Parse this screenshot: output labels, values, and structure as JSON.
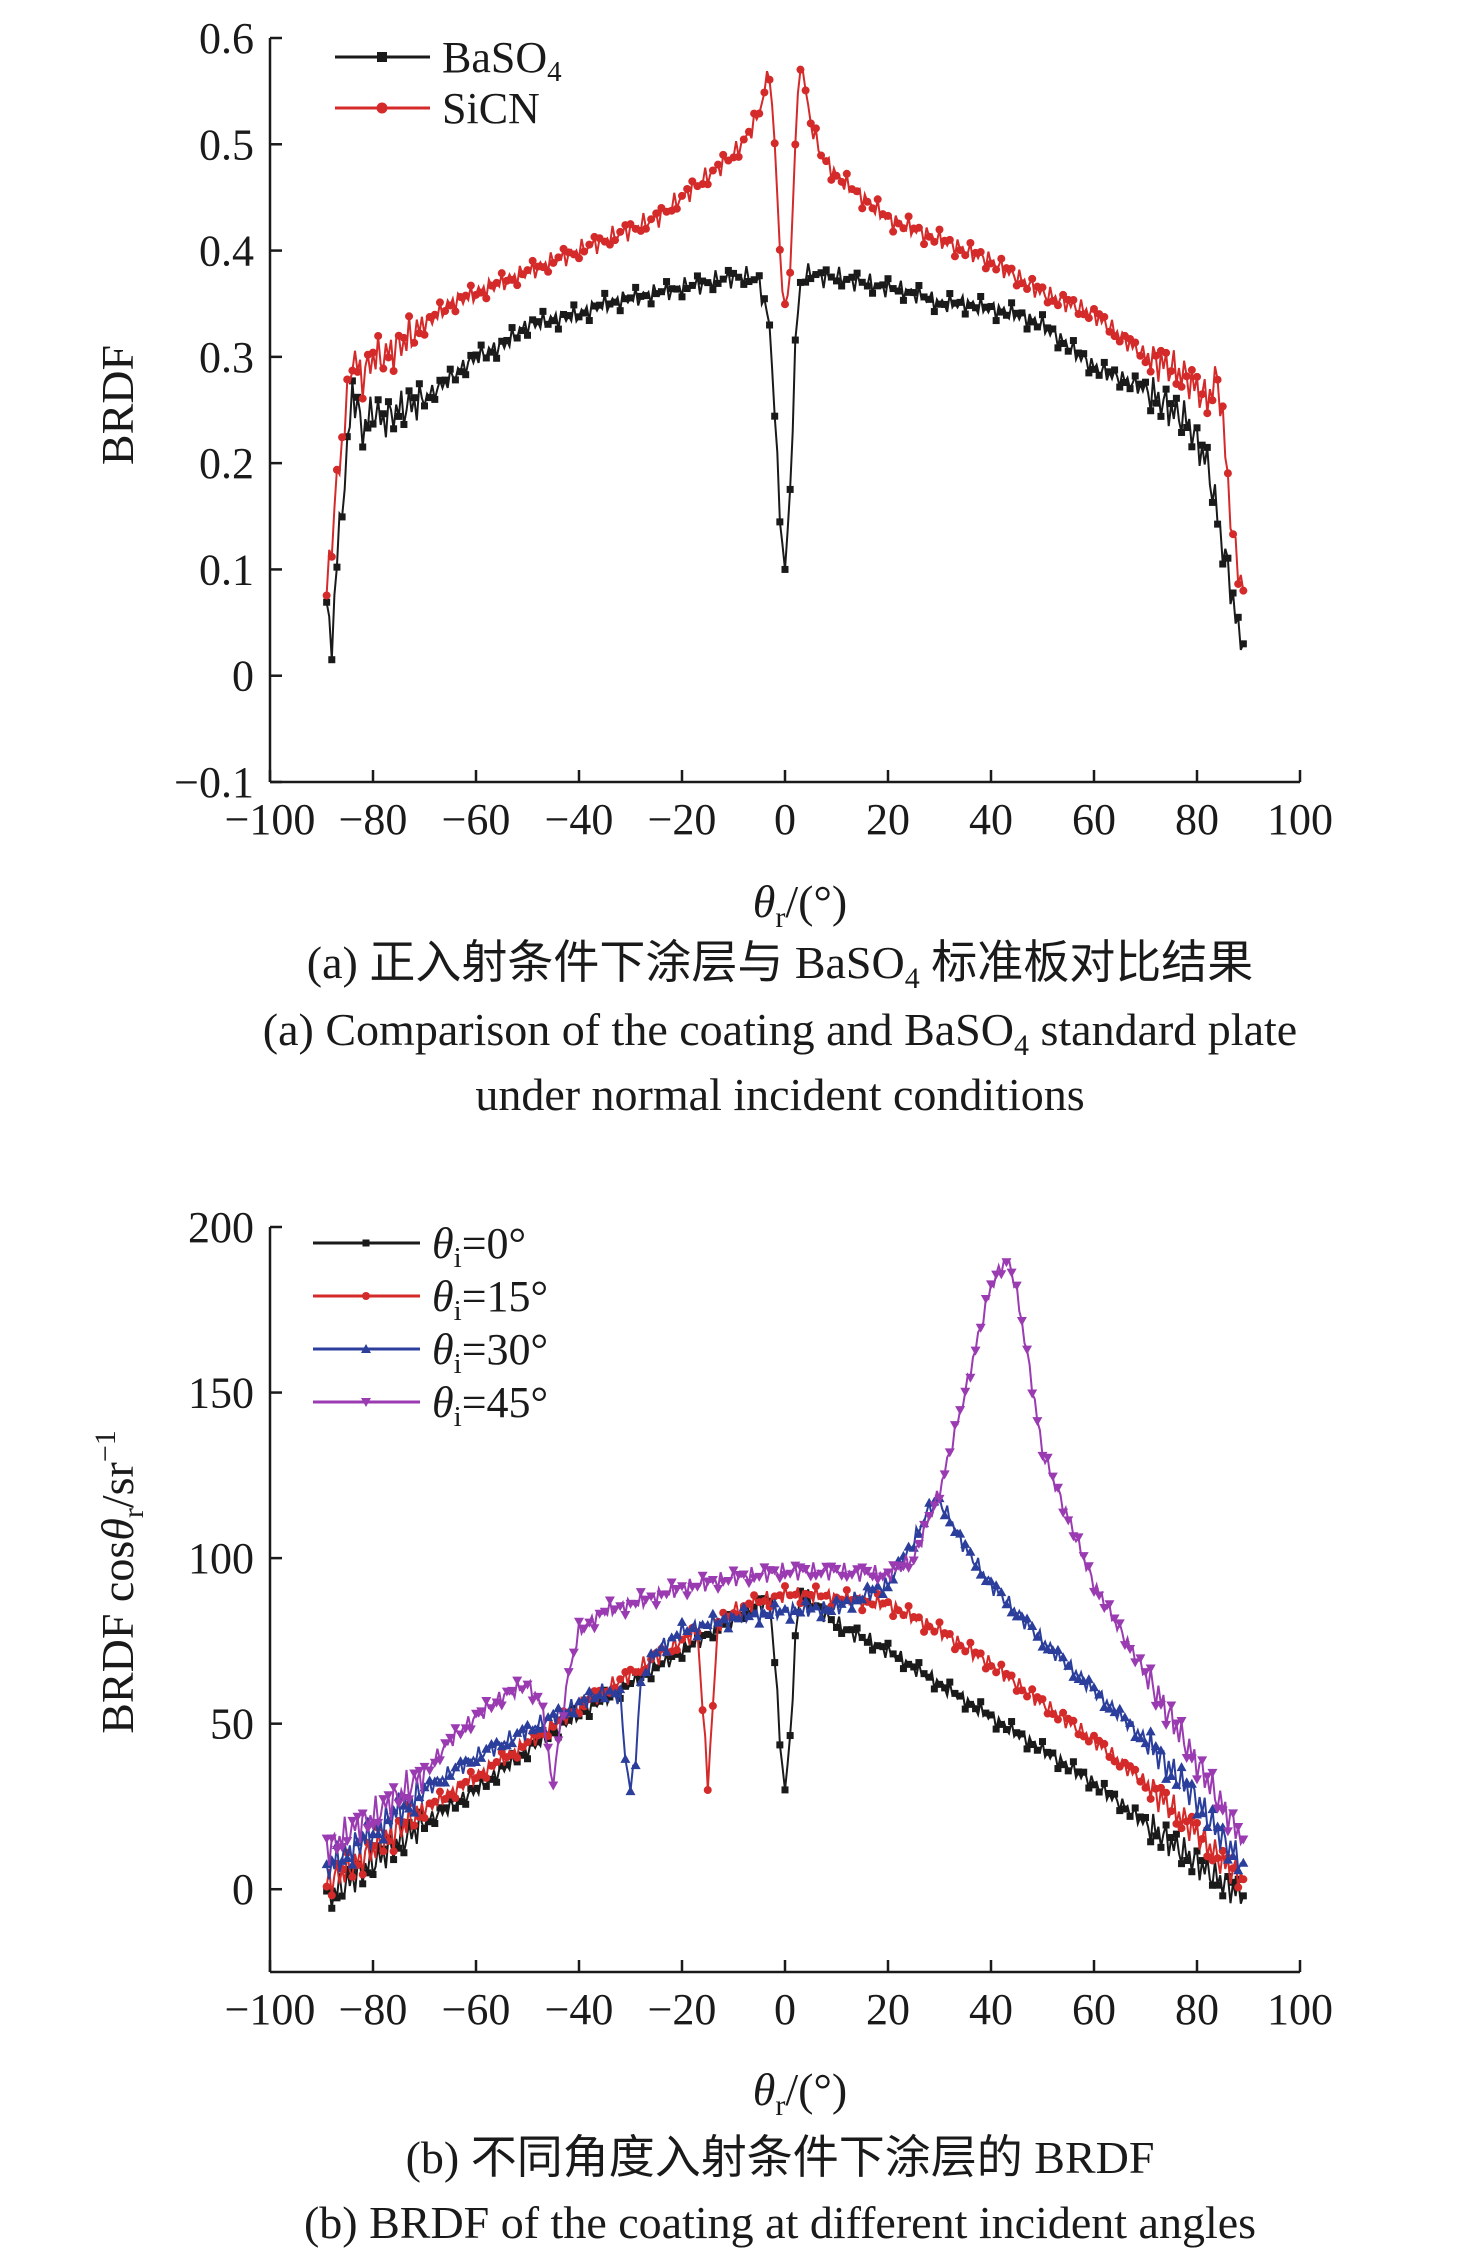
{
  "panel_a": {
    "caption_zh_prefix": "(a) 正入射条件下涂层与 ",
    "caption_zh_suffix": " 标准板对比结果",
    "caption_en_line1_prefix": "(a) Comparison of the coating and ",
    "caption_en_line1_suffix": " standard plate",
    "caption_en_line2": "under normal incident conditions",
    "formula_base": "BaSO",
    "formula_sub": "4"
  },
  "panel_b": {
    "caption_zh": "(b) 不同角度入射条件下涂层的 BRDF",
    "caption_en": "(b) BRDF of the coating at different incident angles"
  },
  "chart_data": [
    {
      "type": "line",
      "ylabel": "BRDF",
      "xlabel_symbol": "θ",
      "xlabel_sub": "r",
      "xlabel_unit": "/(°)",
      "xlim": [
        -100,
        100
      ],
      "ylim": [
        -0.1,
        0.6
      ],
      "xticks": [
        -100,
        -80,
        -60,
        -40,
        -20,
        0,
        20,
        40,
        60,
        80,
        100
      ],
      "yticks": [
        -0.1,
        0,
        0.1,
        0.2,
        0.3,
        0.4,
        0.5,
        0.6
      ],
      "xtick_labels": [
        "−100",
        "−80",
        "−60",
        "−40",
        "−20",
        "0",
        "20",
        "40",
        "60",
        "80",
        "100"
      ],
      "ytick_labels": [
        "−0.1",
        "0",
        "0.1",
        "0.2",
        "0.3",
        "0.4",
        "0.5",
        "0.6"
      ],
      "grid": false,
      "legend_position": "top-left",
      "series": [
        {
          "name": "BaSO4",
          "legend_base": "BaSO",
          "legend_sub": "4",
          "color": "#1a1a1a",
          "marker": "square",
          "x": [
            -89,
            -88,
            -87,
            -86,
            -85,
            -84,
            -82,
            -80,
            -78,
            -75,
            -70,
            -65,
            -60,
            -55,
            -50,
            -45,
            -40,
            -35,
            -30,
            -25,
            -20,
            -15,
            -10,
            -7,
            -5,
            -3,
            -2,
            -1,
            0,
            1,
            2,
            3,
            5,
            7,
            10,
            15,
            20,
            25,
            30,
            35,
            40,
            45,
            50,
            55,
            60,
            65,
            70,
            75,
            78,
            80,
            82,
            84,
            85,
            86,
            87,
            88,
            89
          ],
          "y": [
            0.06,
            0.03,
            0.11,
            0.16,
            0.21,
            0.27,
            0.23,
            0.25,
            0.24,
            0.25,
            0.26,
            0.28,
            0.3,
            0.31,
            0.33,
            0.335,
            0.34,
            0.35,
            0.355,
            0.36,
            0.365,
            0.37,
            0.375,
            0.375,
            0.37,
            0.33,
            0.25,
            0.15,
            0.1,
            0.17,
            0.31,
            0.37,
            0.38,
            0.375,
            0.375,
            0.37,
            0.365,
            0.36,
            0.35,
            0.35,
            0.345,
            0.34,
            0.33,
            0.31,
            0.29,
            0.28,
            0.27,
            0.25,
            0.24,
            0.22,
            0.2,
            0.15,
            0.12,
            0.1,
            0.07,
            0.04,
            0.03
          ]
        },
        {
          "name": "SiCN",
          "legend_base": "SiCN",
          "legend_sub": "",
          "color": "#d42a2a",
          "marker": "circle",
          "x": [
            -89,
            -88,
            -87,
            -86,
            -85,
            -84,
            -82,
            -80,
            -78,
            -75,
            -70,
            -65,
            -60,
            -55,
            -50,
            -45,
            -40,
            -35,
            -30,
            -25,
            -20,
            -15,
            -10,
            -7,
            -5,
            -4,
            -3,
            -2,
            -1,
            0,
            1,
            2,
            3,
            4,
            5,
            7,
            10,
            15,
            20,
            25,
            30,
            35,
            40,
            45,
            50,
            55,
            60,
            65,
            70,
            75,
            78,
            80,
            82,
            84,
            85,
            86,
            87,
            88,
            89
          ],
          "y": [
            0.08,
            0.13,
            0.18,
            0.22,
            0.26,
            0.3,
            0.28,
            0.3,
            0.3,
            0.31,
            0.33,
            0.35,
            0.36,
            0.37,
            0.38,
            0.39,
            0.4,
            0.41,
            0.42,
            0.43,
            0.45,
            0.47,
            0.49,
            0.51,
            0.53,
            0.55,
            0.57,
            0.5,
            0.4,
            0.34,
            0.38,
            0.5,
            0.58,
            0.55,
            0.52,
            0.49,
            0.47,
            0.45,
            0.43,
            0.42,
            0.41,
            0.4,
            0.39,
            0.375,
            0.36,
            0.35,
            0.34,
            0.32,
            0.3,
            0.29,
            0.28,
            0.27,
            0.26,
            0.28,
            0.24,
            0.18,
            0.13,
            0.1,
            0.08
          ]
        }
      ]
    },
    {
      "type": "line",
      "ylabel_prefix": "BRDF cos",
      "ylabel_symbol": "θ",
      "ylabel_sub": "r",
      "ylabel_unit": "/sr",
      "ylabel_sup": "−1",
      "xlabel_symbol": "θ",
      "xlabel_sub": "r",
      "xlabel_unit": "/(°)",
      "xlim": [
        -100,
        100
      ],
      "ylim": [
        -25,
        200
      ],
      "xticks": [
        -100,
        -80,
        -60,
        -40,
        -20,
        0,
        20,
        40,
        60,
        80,
        100
      ],
      "yticks": [
        0,
        50,
        100,
        150,
        200
      ],
      "xtick_labels": [
        "−100",
        "−80",
        "−60",
        "−40",
        "−20",
        "0",
        "20",
        "40",
        "60",
        "80",
        "100"
      ],
      "ytick_labels": [
        "0",
        "50",
        "100",
        "150",
        "200"
      ],
      "grid": false,
      "legend_position": "top-left",
      "series": [
        {
          "name": "θi=0°",
          "legend_symbol": "θ",
          "legend_sub": "i",
          "legend_value": "=0°",
          "color": "#1a1a1a",
          "marker": "square",
          "x": [
            -89,
            -85,
            -80,
            -70,
            -60,
            -50,
            -40,
            -30,
            -20,
            -10,
            -5,
            -3,
            -2,
            -1,
            0,
            1,
            2,
            3,
            5,
            10,
            20,
            30,
            40,
            50,
            60,
            70,
            80,
            85,
            89
          ],
          "y": [
            -3,
            2,
            8,
            20,
            30,
            42,
            53,
            62,
            72,
            82,
            86,
            87,
            70,
            45,
            30,
            45,
            75,
            90,
            87,
            80,
            72,
            62,
            52,
            42,
            32,
            20,
            8,
            2,
            -2
          ]
        },
        {
          "name": "θi=15°",
          "legend_symbol": "θ",
          "legend_sub": "i",
          "legend_value": "=15°",
          "color": "#d42a2a",
          "marker": "circle",
          "x": [
            -89,
            -85,
            -80,
            -70,
            -60,
            -50,
            -40,
            -30,
            -20,
            -17,
            -16,
            -15,
            -14,
            -13,
            -10,
            -5,
            0,
            5,
            10,
            15,
            20,
            25,
            30,
            40,
            50,
            60,
            70,
            80,
            85,
            89
          ],
          "y": [
            2,
            6,
            12,
            24,
            34,
            44,
            55,
            65,
            75,
            78,
            55,
            32,
            55,
            80,
            84,
            87,
            89,
            89,
            88,
            87,
            86,
            82,
            78,
            68,
            56,
            45,
            32,
            17,
            8,
            3
          ]
        },
        {
          "name": "θi=30°",
          "legend_symbol": "θ",
          "legend_sub": "i",
          "legend_value": "=30°",
          "color": "#2b3e9c",
          "marker": "triangle-up",
          "x": [
            -89,
            -85,
            -80,
            -70,
            -60,
            -50,
            -40,
            -35,
            -32,
            -31,
            -30,
            -29,
            -28,
            -25,
            -20,
            -10,
            0,
            10,
            20,
            25,
            28,
            30,
            32,
            35,
            40,
            50,
            60,
            70,
            80,
            85,
            89
          ],
          "y": [
            6,
            11,
            17,
            30,
            40,
            48,
            56,
            60,
            58,
            40,
            30,
            40,
            62,
            72,
            78,
            82,
            84,
            85,
            92,
            105,
            115,
            117,
            112,
            103,
            92,
            75,
            60,
            45,
            27,
            15,
            8
          ]
        },
        {
          "name": "θi=45°",
          "legend_symbol": "θ",
          "legend_sub": "i",
          "legend_value": "=45°",
          "color": "#9a3bb2",
          "marker": "triangle-down",
          "x": [
            -89,
            -85,
            -80,
            -70,
            -65,
            -60,
            -55,
            -50,
            -47,
            -46,
            -45,
            -44,
            -42,
            -40,
            -35,
            -30,
            -20,
            -10,
            0,
            10,
            20,
            25,
            30,
            35,
            38,
            40,
            42,
            43,
            44,
            45,
            47,
            50,
            55,
            60,
            70,
            80,
            85,
            89
          ],
          "y": [
            12,
            17,
            22,
            35,
            45,
            52,
            58,
            62,
            55,
            40,
            32,
            45,
            65,
            78,
            84,
            86,
            91,
            94,
            96,
            96,
            95,
            100,
            120,
            150,
            170,
            182,
            188,
            190,
            187,
            180,
            162,
            132,
            112,
            92,
            65,
            38,
            25,
            15
          ]
        }
      ]
    }
  ]
}
